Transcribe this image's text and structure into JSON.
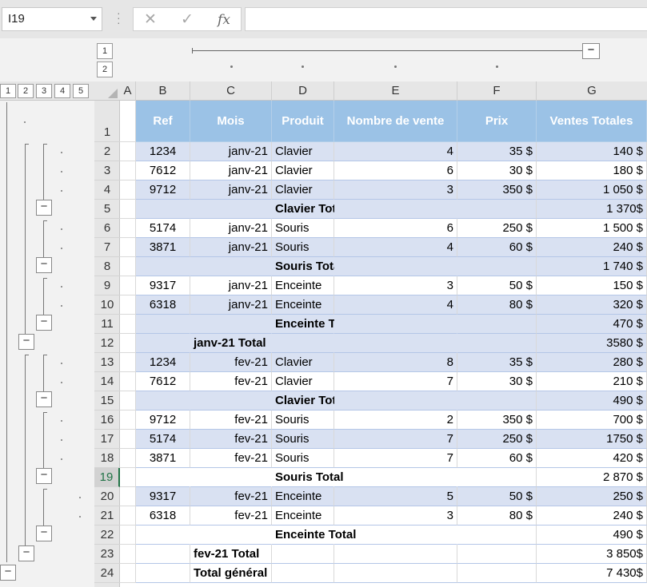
{
  "namebox": "I19",
  "formula": {
    "cancel": "✕",
    "enter": "✓",
    "fx": "fx",
    "value": ""
  },
  "outline": {
    "col_levels": [
      "1",
      "2"
    ],
    "row_levels": [
      "1",
      "2",
      "3",
      "4",
      "5"
    ],
    "minus": "−"
  },
  "columns": [
    "A",
    "B",
    "C",
    "D",
    "E",
    "F",
    "G"
  ],
  "header": [
    "Ref",
    "Mois",
    "Produit",
    "Nombre de vente",
    "Prix",
    "Ventes Totales"
  ],
  "rows": [
    {
      "n": "2",
      "ref": "1234",
      "mois": "janv-21",
      "produit": "Clavier",
      "nb": "4",
      "prix": "35 $",
      "total": "140 $"
    },
    {
      "n": "3",
      "ref": "7612",
      "mois": "janv-21",
      "produit": "Clavier",
      "nb": "6",
      "prix": "30 $",
      "total": "180 $"
    },
    {
      "n": "4",
      "ref": "9712",
      "mois": "janv-21",
      "produit": "Clavier",
      "nb": "3",
      "prix": "350 $",
      "total": "1 050 $"
    },
    {
      "n": "5",
      "label_d": "Clavier Total",
      "total": "1 370$"
    },
    {
      "n": "6",
      "ref": "5174",
      "mois": "janv-21",
      "produit": "Souris",
      "nb": "6",
      "prix": "250 $",
      "total": "1 500 $"
    },
    {
      "n": "7",
      "ref": "3871",
      "mois": "janv-21",
      "produit": "Souris",
      "nb": "4",
      "prix": "60 $",
      "total": "240 $"
    },
    {
      "n": "8",
      "label_d": "Souris Total",
      "total": "1 740 $"
    },
    {
      "n": "9",
      "ref": "9317",
      "mois": "janv-21",
      "produit": "Enceinte",
      "nb": "3",
      "prix": "50 $",
      "total": "150 $"
    },
    {
      "n": "10",
      "ref": "6318",
      "mois": "janv-21",
      "produit": "Enceinte",
      "nb": "4",
      "prix": "80 $",
      "total": "320 $"
    },
    {
      "n": "11",
      "label_d": "Enceinte Total",
      "total": "470 $"
    },
    {
      "n": "12",
      "label_c": "janv-21 Total",
      "total": "3580 $"
    },
    {
      "n": "13",
      "ref": "1234",
      "mois": "fev-21",
      "produit": "Clavier",
      "nb": "8",
      "prix": "35 $",
      "total": "280 $"
    },
    {
      "n": "14",
      "ref": "7612",
      "mois": "fev-21",
      "produit": "Clavier",
      "nb": "7",
      "prix": "30 $",
      "total": "210 $"
    },
    {
      "n": "15",
      "label_d": "Clavier Total",
      "total": "490 $"
    },
    {
      "n": "16",
      "ref": "9712",
      "mois": "fev-21",
      "produit": "Souris",
      "nb": "2",
      "prix": "350 $",
      "total": "700 $"
    },
    {
      "n": "17",
      "ref": "5174",
      "mois": "fev-21",
      "produit": "Souris",
      "nb": "7",
      "prix": "250 $",
      "total": "1750 $"
    },
    {
      "n": "18",
      "ref": "3871",
      "mois": "fev-21",
      "produit": "Souris",
      "nb": "7",
      "prix": "60 $",
      "total": "420 $"
    },
    {
      "n": "19",
      "label_d": "Souris Total",
      "total": "2 870 $"
    },
    {
      "n": "20",
      "ref": "9317",
      "mois": "fev-21",
      "produit": "Enceinte",
      "nb": "5",
      "prix": "50 $",
      "total": "250 $"
    },
    {
      "n": "21",
      "ref": "6318",
      "mois": "fev-21",
      "produit": "Enceinte",
      "nb": "3",
      "prix": "80 $",
      "total": "240 $"
    },
    {
      "n": "22",
      "label_d": "Enceinte Total",
      "total": "490 $"
    },
    {
      "n": "23",
      "label_c": "fev-21 Total",
      "total": "3 850$"
    },
    {
      "n": "24",
      "label_c": "Total général",
      "total": "7 430$"
    }
  ]
}
